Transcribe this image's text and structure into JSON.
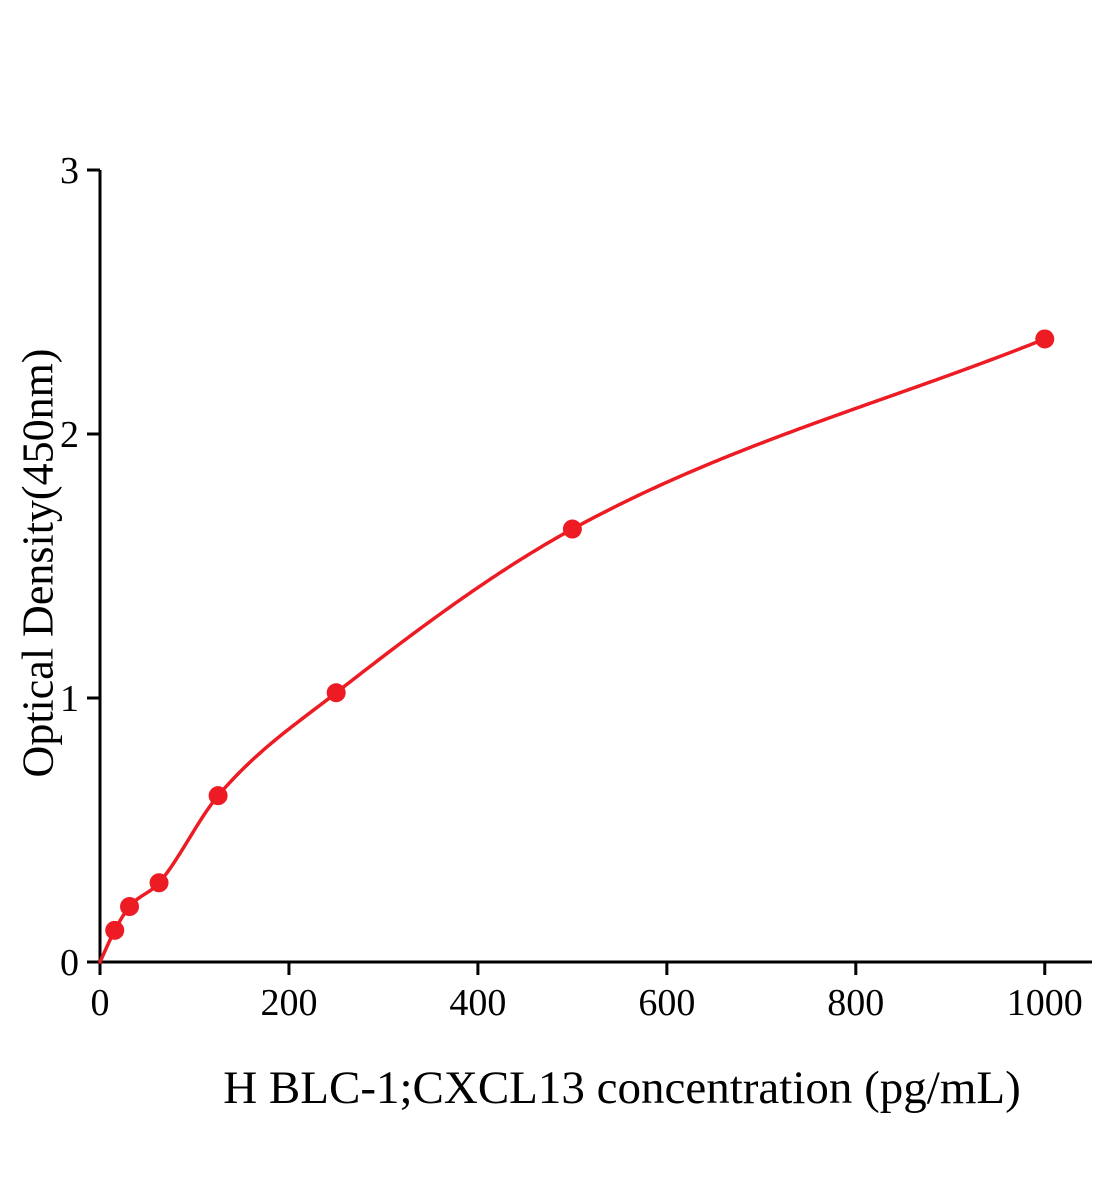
{
  "chart_data": {
    "type": "scatter",
    "title": "",
    "xlabel": "H BLC-1;CXCL13 concentration (pg/mL)",
    "ylabel": "Optical Density(450nm)",
    "x": [
      15.6,
      31.25,
      62.5,
      125,
      250,
      500,
      1000
    ],
    "y": [
      0.12,
      0.21,
      0.3,
      0.63,
      1.02,
      1.64,
      2.36
    ],
    "curve_origin": {
      "x": 0,
      "y": 0
    },
    "xlim": [
      0,
      1050
    ],
    "ylim": [
      0,
      3
    ],
    "x_ticks": [
      0,
      200,
      400,
      600,
      800,
      1000
    ],
    "y_ticks": [
      0,
      1,
      2,
      3
    ],
    "line_color": "#ed1c24",
    "marker_color": "#ed1c24",
    "axis_color": "#000000",
    "grid": false,
    "legend": null
  }
}
